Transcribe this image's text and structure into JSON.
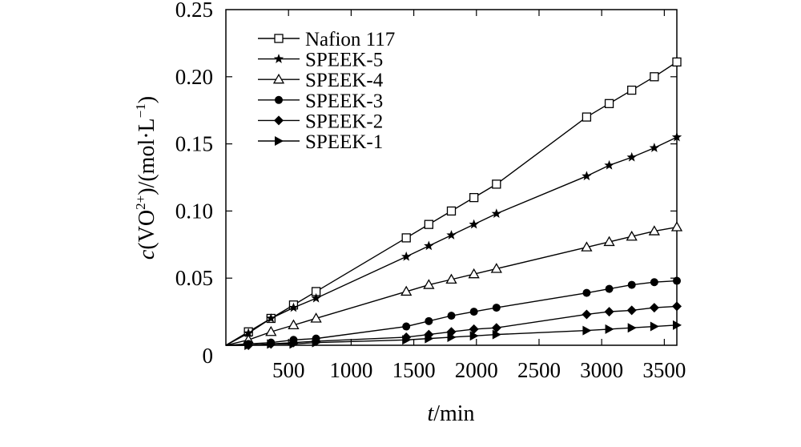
{
  "chart_data": {
    "type": "line",
    "title": "",
    "xlabel": {
      "italic": "t",
      "rest": "/min"
    },
    "ylabel": {
      "italic": "c",
      "p1": "(VO",
      "sup1": "2+",
      "p2": ")/(mol·L",
      "sup2": "−1",
      "p3": ")"
    },
    "xlim": [
      0,
      3600
    ],
    "ylim": [
      0,
      0.25
    ],
    "x_ticks": [
      {
        "value": 500,
        "label": "500"
      },
      {
        "value": 1000,
        "label": "1000"
      },
      {
        "value": 1500,
        "label": "1500"
      },
      {
        "value": 2000,
        "label": "2000"
      },
      {
        "value": 2500,
        "label": "2500"
      },
      {
        "value": 3000,
        "label": "3000"
      },
      {
        "value": 3500,
        "label": "3500"
      }
    ],
    "y_ticks": [
      {
        "value": 0,
        "label": "0"
      },
      {
        "value": 0.05,
        "label": "0.05"
      },
      {
        "value": 0.1,
        "label": "0.10"
      },
      {
        "value": 0.15,
        "label": "0.15"
      },
      {
        "value": 0.2,
        "label": "0.20"
      },
      {
        "value": 0.25,
        "label": "0.25"
      }
    ],
    "legend_position": "top-left",
    "x": [
      0,
      180,
      360,
      540,
      720,
      1440,
      1620,
      1800,
      1980,
      2160,
      2880,
      3060,
      3240,
      3420,
      3600
    ],
    "series": [
      {
        "name": "Nafion 117",
        "marker": "square-open",
        "values": [
          0,
          0.01,
          0.02,
          0.03,
          0.04,
          0.08,
          0.09,
          0.1,
          0.11,
          0.12,
          0.17,
          0.18,
          0.19,
          0.2,
          0.211
        ]
      },
      {
        "name": "SPEEK-5",
        "marker": "star",
        "values": [
          0,
          0.009,
          0.02,
          0.028,
          0.035,
          0.066,
          0.074,
          0.082,
          0.09,
          0.098,
          0.126,
          0.134,
          0.14,
          0.147,
          0.155
        ]
      },
      {
        "name": "SPEEK-4",
        "marker": "triangle-open",
        "values": [
          0,
          0.004,
          0.01,
          0.015,
          0.02,
          0.04,
          0.045,
          0.049,
          0.053,
          0.057,
          0.073,
          0.077,
          0.081,
          0.085,
          0.088
        ]
      },
      {
        "name": "SPEEK-3",
        "marker": "circle",
        "values": [
          0,
          0.001,
          0.002,
          0.004,
          0.005,
          0.014,
          0.018,
          0.022,
          0.025,
          0.028,
          0.039,
          0.042,
          0.045,
          0.047,
          0.048
        ]
      },
      {
        "name": "SPEEK-2",
        "marker": "diamond",
        "values": [
          0,
          0.0,
          0.001,
          0.002,
          0.003,
          0.006,
          0.008,
          0.01,
          0.012,
          0.013,
          0.023,
          0.025,
          0.026,
          0.028,
          0.029
        ]
      },
      {
        "name": "SPEEK-1",
        "marker": "triangle-right",
        "values": [
          0,
          0.0,
          0.001,
          0.001,
          0.002,
          0.004,
          0.005,
          0.006,
          0.007,
          0.008,
          0.011,
          0.012,
          0.013,
          0.014,
          0.015
        ]
      }
    ]
  }
}
